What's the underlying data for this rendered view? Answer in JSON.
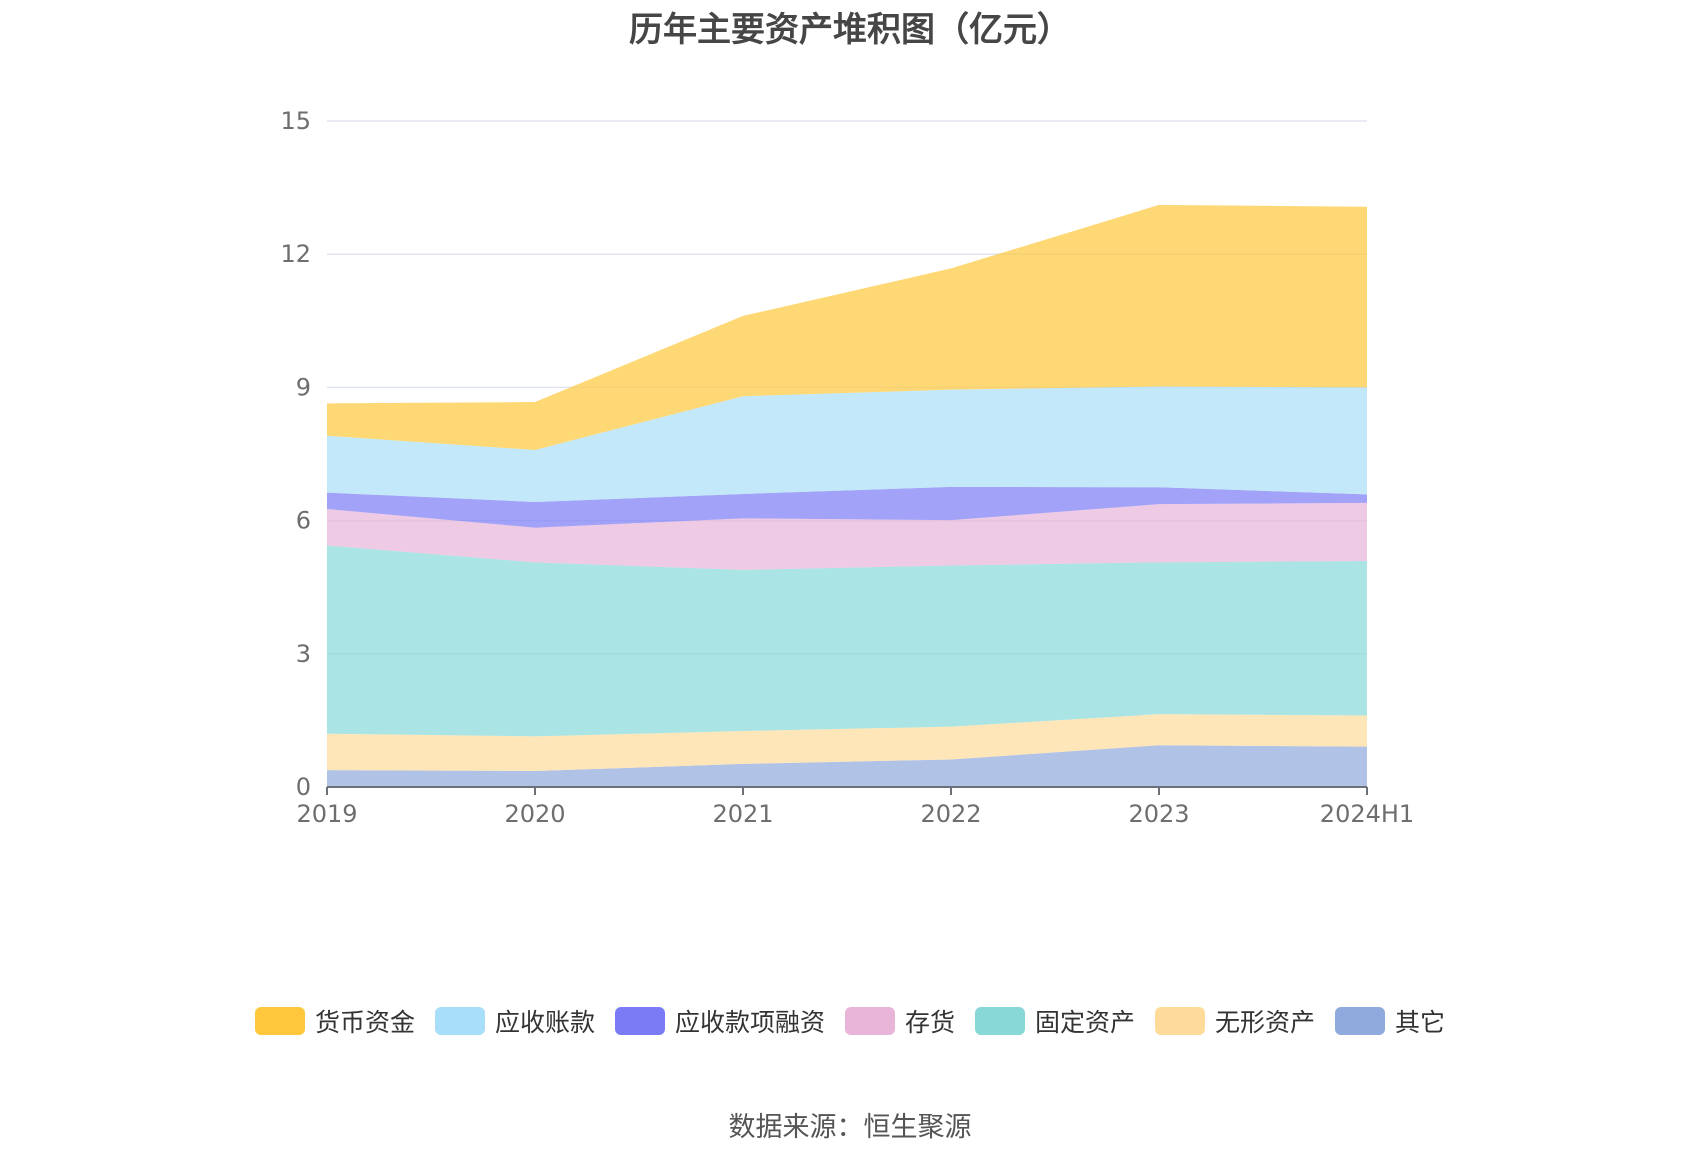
{
  "chart_data": {
    "type": "area",
    "stacked": true,
    "title": "历年主要资产堆积图（亿元）",
    "categories": [
      "2019",
      "2020",
      "2021",
      "2022",
      "2023",
      "2024H1"
    ],
    "ylim": [
      0,
      15
    ],
    "yticks": [
      "0",
      "3",
      "6",
      "9",
      "12",
      "15"
    ],
    "grid": true,
    "legend_position": "bottom",
    "series": [
      {
        "name": "其它",
        "color": "#8FAADC",
        "values": [
          0.38,
          0.36,
          0.52,
          0.62,
          0.94,
          0.91
        ]
      },
      {
        "name": "无形资产",
        "color": "#FFDB9B",
        "values": [
          0.82,
          0.78,
          0.74,
          0.74,
          0.7,
          0.7
        ]
      },
      {
        "name": "固定资产",
        "color": "#88D8D8",
        "values": [
          4.24,
          3.92,
          3.63,
          3.63,
          3.42,
          3.48
        ]
      },
      {
        "name": "存货",
        "color": "#E8B4D8",
        "values": [
          0.82,
          0.78,
          1.16,
          1.02,
          1.31,
          1.31
        ]
      },
      {
        "name": "应收款项融资",
        "color": "#7B7CF5",
        "values": [
          0.37,
          0.58,
          0.55,
          0.75,
          0.38,
          0.19
        ]
      },
      {
        "name": "应收账款",
        "color": "#A8DEF8",
        "values": [
          1.28,
          1.17,
          2.2,
          2.19,
          2.27,
          2.41
        ]
      },
      {
        "name": "货币资金",
        "color": "#FFC83C",
        "values": [
          0.73,
          1.08,
          1.81,
          2.73,
          4.09,
          4.07
        ]
      }
    ]
  },
  "legend_order": [
    {
      "name": "货币资金",
      "color": "#FFC83C"
    },
    {
      "name": "应收账款",
      "color": "#A8DEF8"
    },
    {
      "name": "应收款项融资",
      "color": "#7B7CF5"
    },
    {
      "name": "存货",
      "color": "#E8B4D8"
    },
    {
      "name": "固定资产",
      "color": "#88D8D8"
    },
    {
      "name": "无形资产",
      "color": "#FFDB9B"
    },
    {
      "name": "其它",
      "color": "#8FAADC"
    }
  ],
  "source": "数据来源：恒生聚源"
}
